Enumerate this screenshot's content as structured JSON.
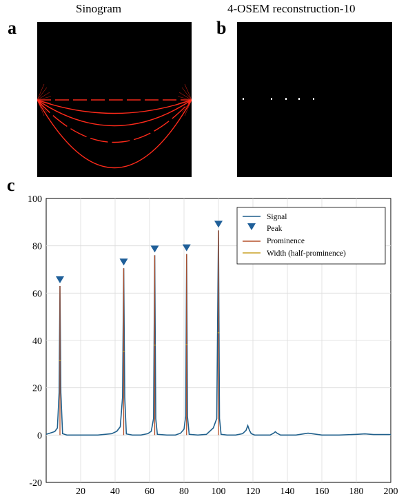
{
  "panels": {
    "a": {
      "letter": "a",
      "title": "Sinogram"
    },
    "b": {
      "letter": "b",
      "title": "4-OSEM reconstruction-10"
    },
    "c": {
      "letter": "c"
    }
  },
  "colors": {
    "signal": "#1f5f8b",
    "peak": "#1f5f99",
    "prominence": "#b5502a",
    "width": "#c9a227",
    "sinogram": "#ff2a1a"
  },
  "chart_data": {
    "type": "line",
    "xlim": [
      0,
      200
    ],
    "ylim": [
      -20,
      100
    ],
    "xticks": [
      20,
      40,
      60,
      80,
      100,
      120,
      140,
      160,
      180,
      200
    ],
    "yticks": [
      100,
      80,
      60,
      40,
      20,
      0,
      -20
    ],
    "grid": true,
    "legend": {
      "placement": "top-right",
      "entries": [
        {
          "name": "Signal",
          "marker": "line"
        },
        {
          "name": "Peak",
          "marker": "triangle"
        },
        {
          "name": "Prominence",
          "marker": "line"
        },
        {
          "name": "Width (half-prominence)",
          "marker": "line"
        }
      ]
    },
    "peaks": [
      {
        "x": 8,
        "y": 63
      },
      {
        "x": 45,
        "y": 70.5
      },
      {
        "x": 63,
        "y": 76
      },
      {
        "x": 81.5,
        "y": 76.5
      },
      {
        "x": 100,
        "y": 86.5
      }
    ],
    "signal": {
      "x": [
        0,
        3,
        5,
        6.5,
        7.5,
        8,
        8.5,
        9.5,
        12,
        20,
        30,
        38,
        41,
        43,
        44.3,
        45,
        45.6,
        46.5,
        50,
        55,
        59,
        61,
        62.3,
        63,
        63.6,
        64.5,
        70,
        75,
        78,
        80,
        81,
        81.5,
        82,
        83,
        88,
        93,
        97,
        99,
        100,
        100.6,
        101.5,
        105,
        110,
        114,
        116,
        117,
        118,
        119,
        121,
        125,
        130,
        132,
        133,
        134,
        136,
        140,
        145,
        150,
        152,
        155,
        160,
        170,
        180,
        185,
        190,
        200
      ],
      "y": [
        0.3,
        1,
        1.5,
        3,
        18,
        63,
        18,
        0.6,
        0,
        0,
        0,
        0.6,
        1.6,
        3.5,
        16,
        70.5,
        16,
        0.5,
        0,
        0,
        0.6,
        1.6,
        7,
        76,
        7,
        0.3,
        0,
        0,
        0.8,
        2.5,
        8,
        76.5,
        8,
        0.3,
        0,
        0.3,
        3,
        7,
        86.5,
        7,
        0.3,
        0,
        0,
        0.6,
        2,
        4,
        2,
        0.6,
        0,
        0,
        0,
        0.8,
        1.4,
        0.8,
        0,
        0,
        0,
        0.6,
        0.8,
        0.5,
        0,
        0,
        0.3,
        0.5,
        0.2,
        0.2
      ]
    }
  }
}
